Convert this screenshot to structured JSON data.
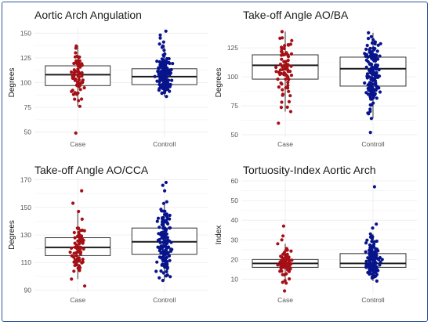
{
  "chart_data": [
    {
      "type": "scatter",
      "subtype": "box-with-jittered-points",
      "title": "Aortic Arch Angulation",
      "xlabel": "",
      "ylabel": "Degrees",
      "categories": [
        "Case",
        "Controll"
      ],
      "ylim": [
        45,
        155
      ],
      "yticks": [
        50,
        75,
        100,
        125,
        150
      ],
      "colors": {
        "Case": "#a50f15",
        "Controll": "#08148c"
      },
      "boxes": [
        {
          "group": "Case",
          "min": 76,
          "q1": 97,
          "median": 108,
          "q3": 117,
          "max": 137,
          "outliers": [
            49
          ]
        },
        {
          "group": "Controll",
          "min": 86,
          "q1": 98,
          "median": 106,
          "q3": 114,
          "max": 137,
          "outliers": [
            139,
            141,
            145,
            148,
            152
          ]
        }
      ]
    },
    {
      "type": "scatter",
      "subtype": "box-with-jittered-points",
      "title": "Take-off Angle AO/BA",
      "xlabel": "",
      "ylabel": "Degrees",
      "categories": [
        "Case",
        "Controll"
      ],
      "ylim": [
        48,
        142
      ],
      "yticks": [
        50,
        75,
        100,
        125
      ],
      "colors": {
        "Case": "#a50f15",
        "Controll": "#08148c"
      },
      "boxes": [
        {
          "group": "Case",
          "min": 70,
          "q1": 98,
          "median": 110,
          "q3": 119,
          "max": 139,
          "outliers": [
            60
          ]
        },
        {
          "group": "Controll",
          "min": 64,
          "q1": 92,
          "median": 107,
          "q3": 117,
          "max": 138,
          "outliers": [
            52
          ]
        }
      ]
    },
    {
      "type": "scatter",
      "subtype": "box-with-jittered-points",
      "title": "Take-off Angle AO/CCA",
      "xlabel": "",
      "ylabel": "Degrees",
      "categories": [
        "Case",
        "Controll"
      ],
      "ylim": [
        88,
        172
      ],
      "yticks": [
        90,
        110,
        130,
        150,
        170
      ],
      "colors": {
        "Case": "#a50f15",
        "Controll": "#08148c"
      },
      "boxes": [
        {
          "group": "Case",
          "min": 98,
          "q1": 115,
          "median": 121,
          "q3": 128,
          "max": 147,
          "outliers": [
            93,
            153,
            162
          ]
        },
        {
          "group": "Controll",
          "min": 97,
          "q1": 116,
          "median": 125,
          "q3": 135,
          "max": 154,
          "outliers": [
            162,
            166,
            168
          ]
        }
      ]
    },
    {
      "type": "scatter",
      "subtype": "box-with-jittered-points",
      "title": "Tortuosity-Index Aortic Arch",
      "xlabel": "",
      "ylabel": "Index",
      "categories": [
        "Case",
        "Controll"
      ],
      "ylim": [
        3,
        62
      ],
      "yticks": [
        10,
        20,
        30,
        40,
        50,
        60
      ],
      "colors": {
        "Case": "#a50f15",
        "Controll": "#08148c"
      },
      "boxes": [
        {
          "group": "Case",
          "min": 8,
          "q1": 16,
          "median": 18,
          "q3": 20,
          "max": 28,
          "outliers": [
            4,
            30,
            32,
            37
          ]
        },
        {
          "group": "Controll",
          "min": 9,
          "q1": 16,
          "median": 18,
          "q3": 23,
          "max": 33,
          "outliers": [
            36,
            38,
            57
          ]
        }
      ]
    }
  ]
}
